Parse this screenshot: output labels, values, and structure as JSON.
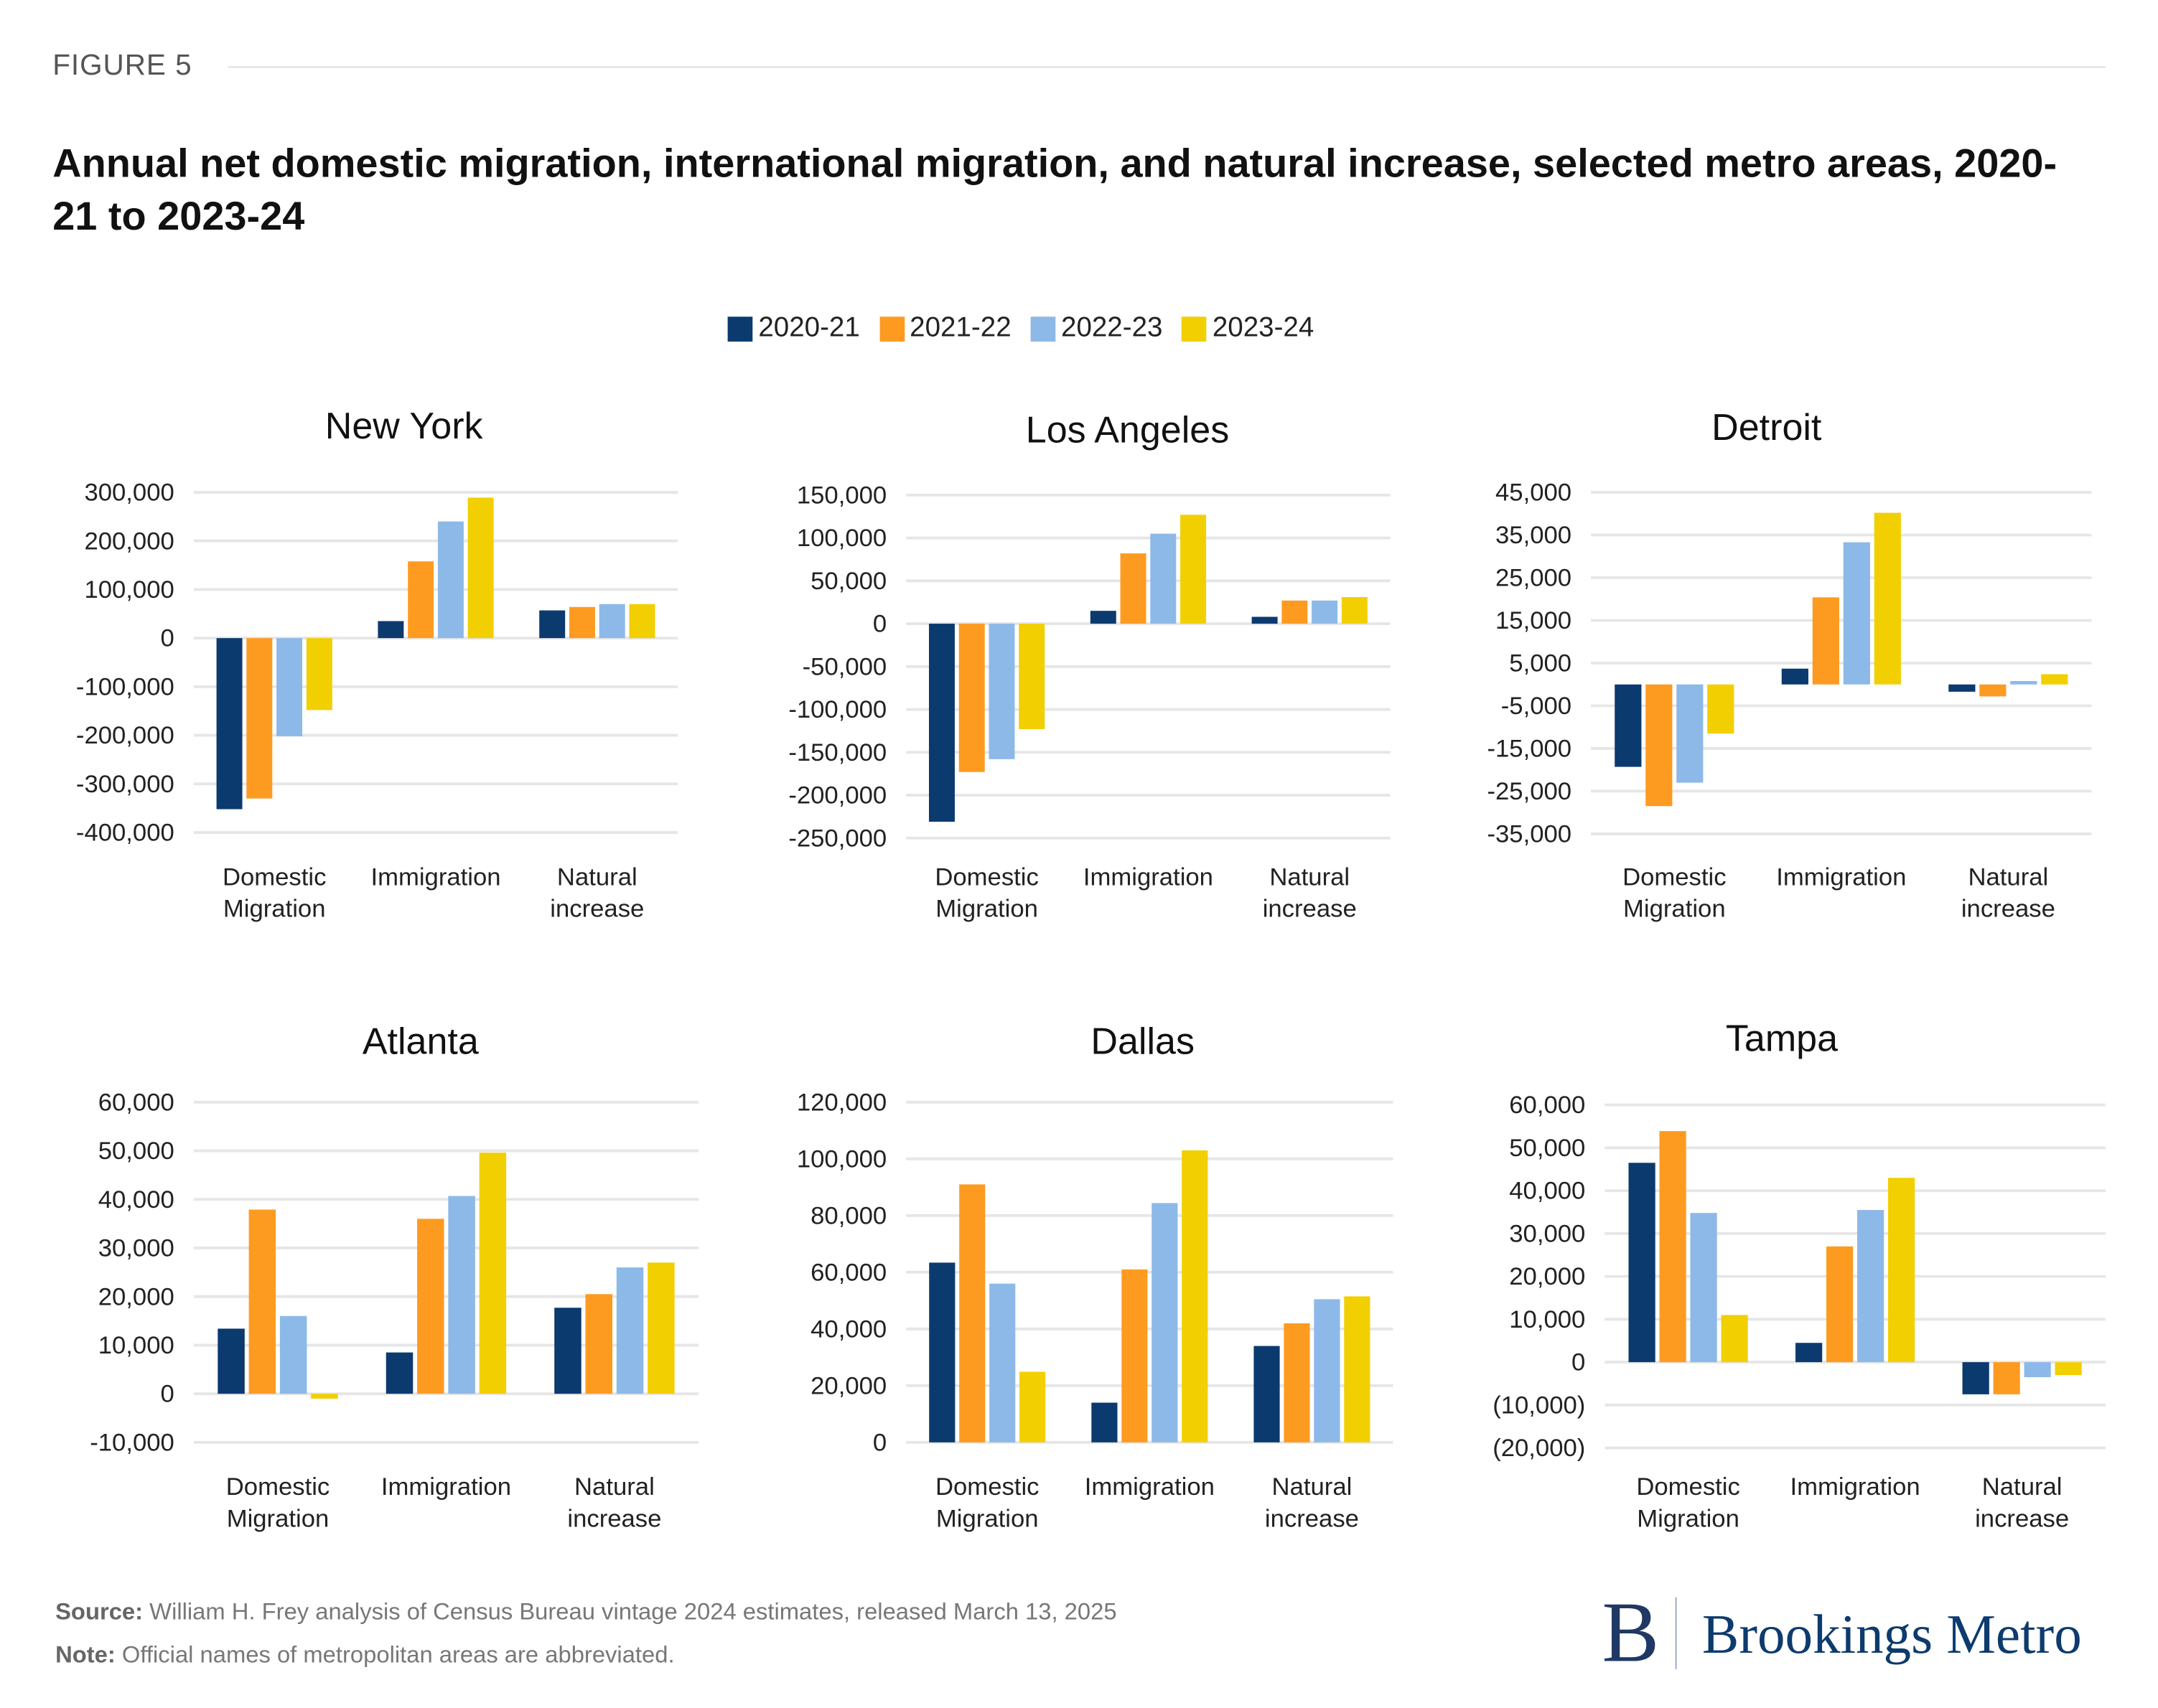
{
  "figure_label": "FIGURE 5",
  "title": "Annual net domestic migration, international migration, and natural increase, selected metro areas, 2020-21 to 2023-24",
  "legend": [
    {
      "label": "2020-21",
      "color": "#0b3a6f"
    },
    {
      "label": "2021-22",
      "color": "#fd9b21"
    },
    {
      "label": "2022-23",
      "color": "#8db9e8"
    },
    {
      "label": "2023-24",
      "color": "#f2cf00"
    }
  ],
  "footer": {
    "source_label": "Source:",
    "source_text": " William H. Frey analysis of Census Bureau vintage 2024 estimates, released March 13, 2025",
    "note_label": "Note:",
    "note_text": " Official names of metropolitan areas are abbreviated."
  },
  "logo": {
    "mark": "B",
    "text": "Brookings Metro"
  },
  "chart_data": [
    {
      "type": "bar",
      "title": "New York",
      "categories": [
        [
          "Domestic",
          "Migration"
        ],
        [
          "Immigration"
        ],
        [
          "Natural",
          "increase"
        ]
      ],
      "ylim": [
        -400000,
        300000
      ],
      "yticks": [
        300000,
        200000,
        100000,
        0,
        -100000,
        -200000,
        -300000,
        -400000
      ],
      "ytick_labels": [
        "300,000",
        "200,000",
        "100,000",
        "0",
        "-100,000",
        "-200,000",
        "-300,000",
        "-400,000"
      ],
      "grid": true,
      "series": [
        {
          "name": "2020-21",
          "values": [
            -352000,
            35000,
            57000
          ]
        },
        {
          "name": "2021-22",
          "values": [
            -330000,
            158000,
            64000
          ]
        },
        {
          "name": "2022-23",
          "values": [
            -202000,
            240000,
            70000
          ]
        },
        {
          "name": "2023-24",
          "values": [
            -148000,
            289000,
            70000
          ]
        }
      ]
    },
    {
      "type": "bar",
      "title": "Los Angeles",
      "categories": [
        [
          "Domestic",
          "Migration"
        ],
        [
          "Immigration"
        ],
        [
          "Natural",
          "increase"
        ]
      ],
      "ylim": [
        -250000,
        150000
      ],
      "yticks": [
        150000,
        100000,
        50000,
        0,
        -50000,
        -100000,
        -150000,
        -200000,
        -250000
      ],
      "ytick_labels": [
        "150,000",
        "100,000",
        "50,000",
        "0",
        "-50,000",
        "-100,000",
        "-150,000",
        "-200,000",
        "-250,000"
      ],
      "grid": true,
      "series": [
        {
          "name": "2020-21",
          "values": [
            -231000,
            15000,
            8000
          ]
        },
        {
          "name": "2021-22",
          "values": [
            -173000,
            82000,
            27000
          ]
        },
        {
          "name": "2022-23",
          "values": [
            -158000,
            105000,
            27000
          ]
        },
        {
          "name": "2023-24",
          "values": [
            -123000,
            127000,
            31000
          ]
        }
      ]
    },
    {
      "type": "bar",
      "title": "Detroit",
      "categories": [
        [
          "Domestic",
          "Migration"
        ],
        [
          "Immigration"
        ],
        [
          "Natural",
          "increase"
        ]
      ],
      "ylim": [
        -35000,
        45000
      ],
      "yticks": [
        45000,
        35000,
        25000,
        15000,
        5000,
        -5000,
        -15000,
        -25000,
        -35000
      ],
      "ytick_labels": [
        "45,000",
        "35,000",
        "25,000",
        "15,000",
        "5,000",
        "-5,000",
        "-15,000",
        "-25,000",
        "-35,000"
      ],
      "grid": true,
      "series": [
        {
          "name": "2020-21",
          "values": [
            -19300,
            3700,
            -1700
          ]
        },
        {
          "name": "2021-22",
          "values": [
            -28500,
            20400,
            -2800
          ]
        },
        {
          "name": "2022-23",
          "values": [
            -23000,
            33300,
            800
          ]
        },
        {
          "name": "2023-24",
          "values": [
            -11500,
            40200,
            2400
          ]
        }
      ]
    },
    {
      "type": "bar",
      "title": "Atlanta",
      "categories": [
        [
          "Domestic",
          "Migration"
        ],
        [
          "Immigration"
        ],
        [
          "Natural",
          "increase"
        ]
      ],
      "ylim": [
        -10000,
        60000
      ],
      "yticks": [
        60000,
        50000,
        40000,
        30000,
        20000,
        10000,
        0,
        -10000
      ],
      "ytick_labels": [
        "60,000",
        "50,000",
        "40,000",
        "30,000",
        "20,000",
        "10,000",
        "0",
        "-10,000"
      ],
      "grid": true,
      "series": [
        {
          "name": "2020-21",
          "values": [
            13400,
            8500,
            17700
          ]
        },
        {
          "name": "2021-22",
          "values": [
            37900,
            36000,
            20500
          ]
        },
        {
          "name": "2022-23",
          "values": [
            16000,
            40700,
            26000
          ]
        },
        {
          "name": "2023-24",
          "values": [
            -1000,
            49600,
            27000
          ]
        }
      ]
    },
    {
      "type": "bar",
      "title": "Dallas",
      "categories": [
        [
          "Domestic",
          "Migration"
        ],
        [
          "Immigration"
        ],
        [
          "Natural",
          "increase"
        ]
      ],
      "ylim": [
        0,
        120000
      ],
      "yticks": [
        120000,
        100000,
        80000,
        60000,
        40000,
        20000,
        0
      ],
      "ytick_labels": [
        "120,000",
        "100,000",
        "80,000",
        "60,000",
        "40,000",
        "20,000",
        "0"
      ],
      "grid": true,
      "series": [
        {
          "name": "2020-21",
          "values": [
            63400,
            14000,
            34000
          ]
        },
        {
          "name": "2021-22",
          "values": [
            91000,
            61000,
            42000
          ]
        },
        {
          "name": "2022-23",
          "values": [
            56000,
            84400,
            50500
          ]
        },
        {
          "name": "2023-24",
          "values": [
            24900,
            103000,
            51500
          ]
        }
      ]
    },
    {
      "type": "bar",
      "title": "Tampa",
      "categories": [
        [
          "Domestic",
          "Migration"
        ],
        [
          "Immigration"
        ],
        [
          "Natural",
          "increase"
        ]
      ],
      "ylim": [
        -20000,
        60000
      ],
      "yticks": [
        60000,
        50000,
        40000,
        30000,
        20000,
        10000,
        0,
        -10000,
        -20000
      ],
      "ytick_labels": [
        "60,000",
        "50,000",
        "40,000",
        "30,000",
        "20,000",
        "10,000",
        "0",
        "(10,000)",
        "(20,000)"
      ],
      "grid": true,
      "series": [
        {
          "name": "2020-21",
          "values": [
            46500,
            4500,
            -7500
          ]
        },
        {
          "name": "2021-22",
          "values": [
            53900,
            27000,
            -7500
          ]
        },
        {
          "name": "2022-23",
          "values": [
            34800,
            35500,
            -3500
          ]
        },
        {
          "name": "2023-24",
          "values": [
            11000,
            43000,
            -3000
          ]
        }
      ]
    }
  ]
}
